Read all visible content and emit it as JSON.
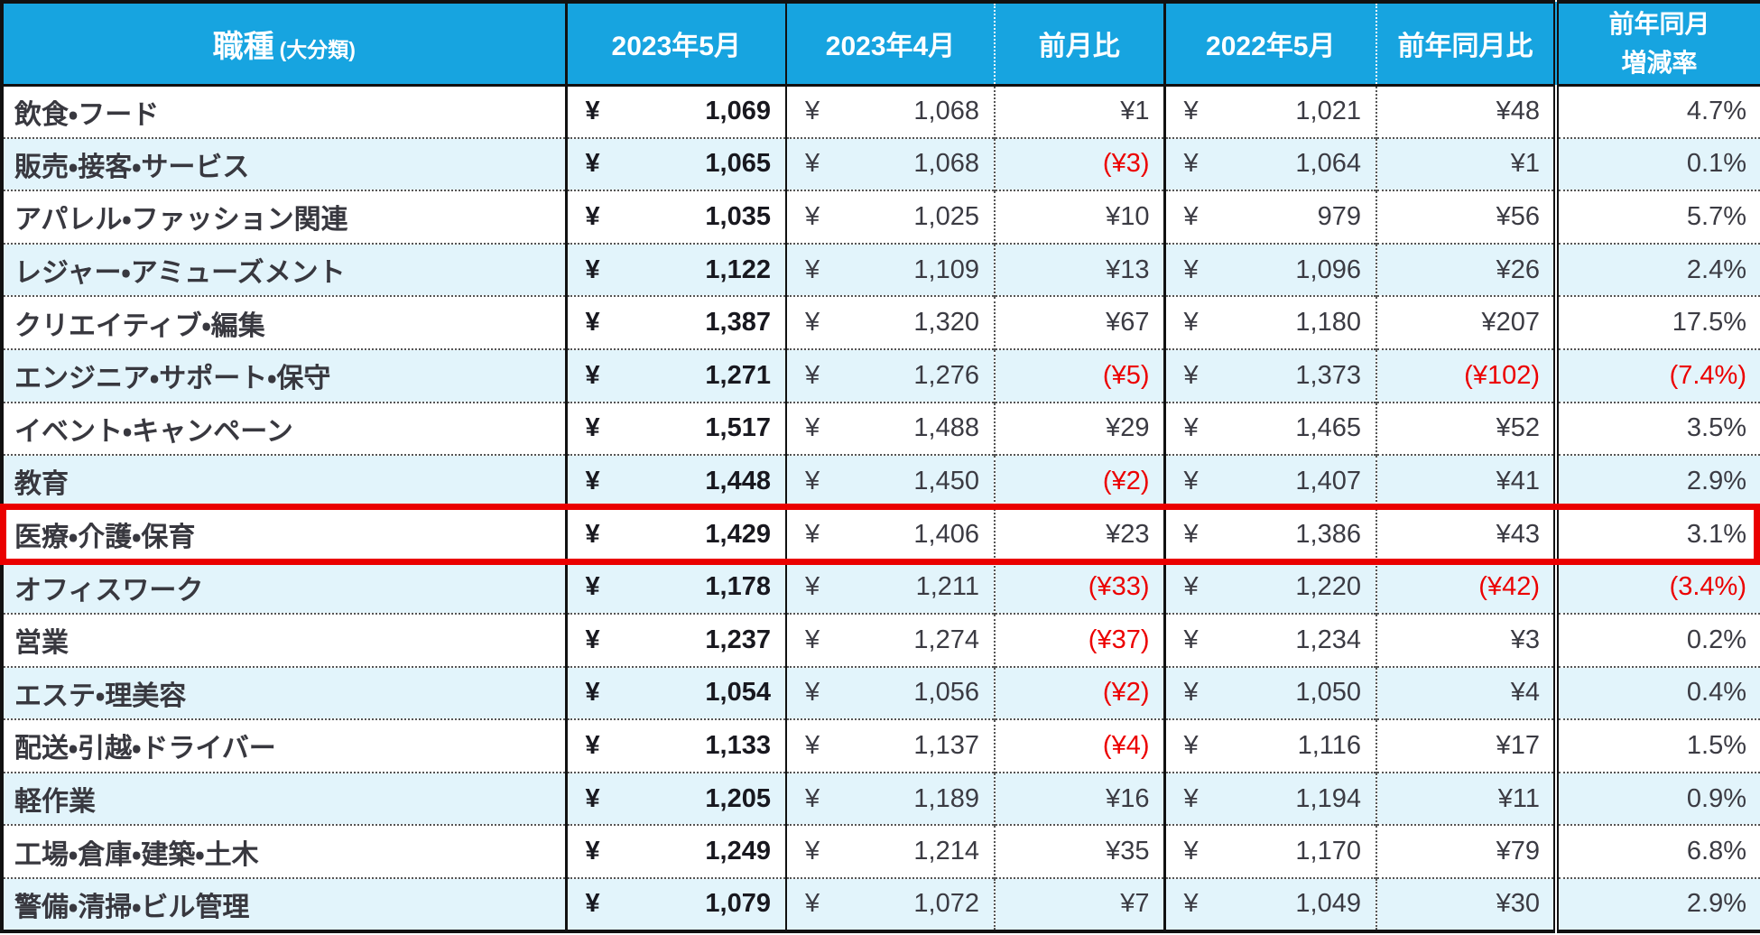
{
  "colors": {
    "header_bg": "#17a4e0",
    "alt_row_bg": "#e2f4fb",
    "negative_text": "#ec0000",
    "highlight_border": "#ea0000",
    "grid_line": "#111111"
  },
  "chart_data": {
    "type": "table",
    "currency_symbol": "¥",
    "header": {
      "occupation_main": "職種",
      "occupation_sub": "(大分類)",
      "may2023": "2023年5月",
      "apr2023": "2023年4月",
      "mom_diff": "前月比",
      "may2022": "2022年5月",
      "yoy_diff": "前年同月比",
      "yoy_rate_line1": "前年同月",
      "yoy_rate_line2": "増減率"
    },
    "rows": [
      {
        "category": "飲食・フード",
        "may2023": "1,069",
        "apr2023": "1,068",
        "mom_diff": "¥1",
        "may2022": "1,021",
        "yoy_diff": "¥48",
        "yoy_rate": "4.7%",
        "highlighted": false
      },
      {
        "category": "販売・接客・サービス",
        "may2023": "1,065",
        "apr2023": "1,068",
        "mom_diff": "(¥3)",
        "may2022": "1,064",
        "yoy_diff": "¥1",
        "yoy_rate": "0.1%",
        "highlighted": false
      },
      {
        "category": "アパレル・ファッション関連",
        "may2023": "1,035",
        "apr2023": "1,025",
        "mom_diff": "¥10",
        "may2022": "979",
        "yoy_diff": "¥56",
        "yoy_rate": "5.7%",
        "highlighted": false
      },
      {
        "category": "レジャー・アミューズメント",
        "may2023": "1,122",
        "apr2023": "1,109",
        "mom_diff": "¥13",
        "may2022": "1,096",
        "yoy_diff": "¥26",
        "yoy_rate": "2.4%",
        "highlighted": false
      },
      {
        "category": "クリエイティブ・編集",
        "may2023": "1,387",
        "apr2023": "1,320",
        "mom_diff": "¥67",
        "may2022": "1,180",
        "yoy_diff": "¥207",
        "yoy_rate": "17.5%",
        "highlighted": false
      },
      {
        "category": "エンジニア・サポート・保守",
        "may2023": "1,271",
        "apr2023": "1,276",
        "mom_diff": "(¥5)",
        "may2022": "1,373",
        "yoy_diff": "(¥102)",
        "yoy_rate": "(7.4%)",
        "highlighted": false
      },
      {
        "category": "イベント・キャンペーン",
        "may2023": "1,517",
        "apr2023": "1,488",
        "mom_diff": "¥29",
        "may2022": "1,465",
        "yoy_diff": "¥52",
        "yoy_rate": "3.5%",
        "highlighted": false
      },
      {
        "category": "教育",
        "may2023": "1,448",
        "apr2023": "1,450",
        "mom_diff": "(¥2)",
        "may2022": "1,407",
        "yoy_diff": "¥41",
        "yoy_rate": "2.9%",
        "highlighted": false
      },
      {
        "category": "医療・介護・保育",
        "may2023": "1,429",
        "apr2023": "1,406",
        "mom_diff": "¥23",
        "may2022": "1,386",
        "yoy_diff": "¥43",
        "yoy_rate": "3.1%",
        "highlighted": true
      },
      {
        "category": "オフィスワーク",
        "may2023": "1,178",
        "apr2023": "1,211",
        "mom_diff": "(¥33)",
        "may2022": "1,220",
        "yoy_diff": "(¥42)",
        "yoy_rate": "(3.4%)",
        "highlighted": false
      },
      {
        "category": "営業",
        "may2023": "1,237",
        "apr2023": "1,274",
        "mom_diff": "(¥37)",
        "may2022": "1,234",
        "yoy_diff": "¥3",
        "yoy_rate": "0.2%",
        "highlighted": false
      },
      {
        "category": "エステ・理美容",
        "may2023": "1,054",
        "apr2023": "1,056",
        "mom_diff": "(¥2)",
        "may2022": "1,050",
        "yoy_diff": "¥4",
        "yoy_rate": "0.4%",
        "highlighted": false
      },
      {
        "category": "配送・引越・ドライバー",
        "may2023": "1,133",
        "apr2023": "1,137",
        "mom_diff": "(¥4)",
        "may2022": "1,116",
        "yoy_diff": "¥17",
        "yoy_rate": "1.5%",
        "highlighted": false
      },
      {
        "category": "軽作業",
        "may2023": "1,205",
        "apr2023": "1,189",
        "mom_diff": "¥16",
        "may2022": "1,194",
        "yoy_diff": "¥11",
        "yoy_rate": "0.9%",
        "highlighted": false
      },
      {
        "category": "工場・倉庫・建築・土木",
        "may2023": "1,249",
        "apr2023": "1,214",
        "mom_diff": "¥35",
        "may2022": "1,170",
        "yoy_diff": "¥79",
        "yoy_rate": "6.8%",
        "highlighted": false
      },
      {
        "category": "警備・清掃・ビル管理",
        "may2023": "1,079",
        "apr2023": "1,072",
        "mom_diff": "¥7",
        "may2022": "1,049",
        "yoy_diff": "¥30",
        "yoy_rate": "2.9%",
        "highlighted": false
      }
    ]
  }
}
